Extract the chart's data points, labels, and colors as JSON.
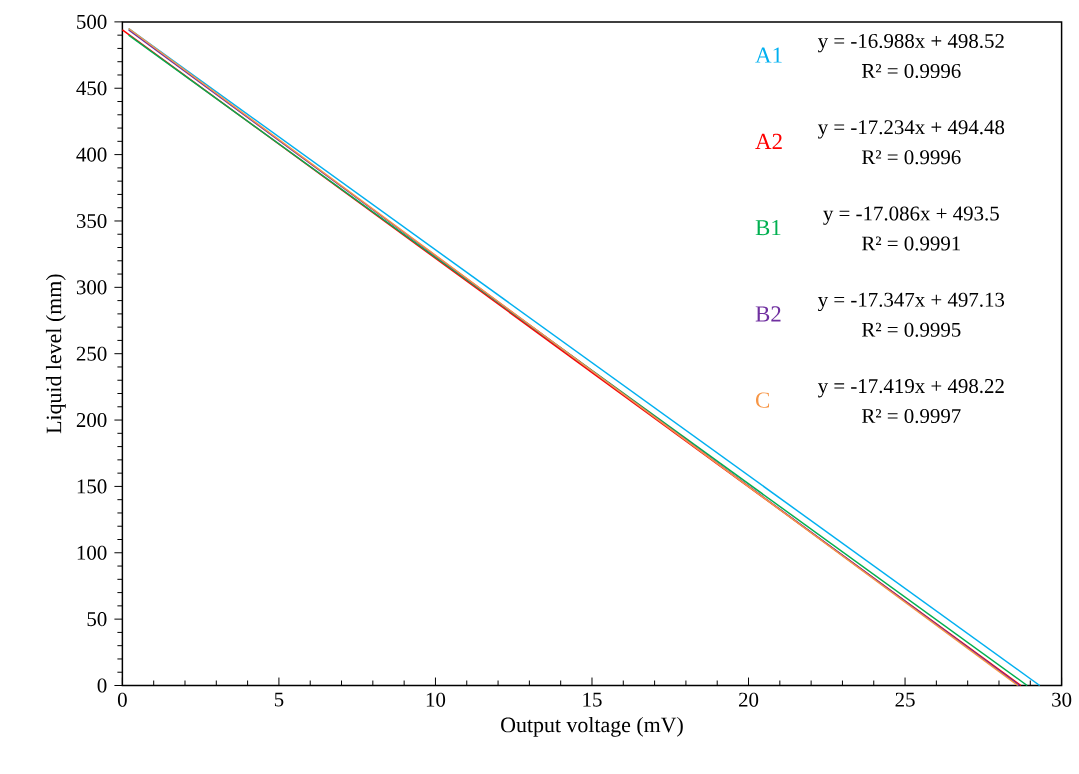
{
  "chart_data": {
    "type": "line",
    "xlabel": "Output voltage (mV)",
    "ylabel": "Liquid level (mm)",
    "xlim": [
      0,
      30
    ],
    "xticks": [
      0,
      5,
      10,
      15,
      20,
      25,
      30
    ],
    "ylim": [
      0,
      500
    ],
    "yticks": [
      0,
      50,
      100,
      150,
      200,
      250,
      300,
      350,
      400,
      450,
      500
    ],
    "grid": false,
    "marker": "none",
    "line_style": "solid",
    "series": [
      {
        "name": "A1",
        "color": "#00b0f0",
        "x": [
          0.2,
          29.3
        ],
        "values": [
          495,
          0
        ]
      },
      {
        "name": "A2",
        "color": "#ff0000",
        "x": [
          0,
          28.7
        ],
        "values": [
          494,
          0
        ]
      },
      {
        "name": "B1",
        "color": "#00b050",
        "x": [
          0.2,
          28.9
        ],
        "values": [
          490,
          0
        ]
      },
      {
        "name": "B2",
        "color": "#7030a0",
        "x": [
          0.2,
          28.65
        ],
        "values": [
          494,
          0
        ]
      },
      {
        "name": "C",
        "color": "#f79646",
        "x": [
          0.2,
          28.6
        ],
        "values": [
          495,
          0
        ]
      }
    ],
    "annotations": [
      "y = -16.988x + 498.52",
      "R² = 0.9996",
      "y = -17.234x + 494.48",
      "R² = 0.9996",
      "y = -17.086x + 493.5",
      "R² = 0.9991",
      "y = -17.347x + 497.13",
      "R² = 0.9995",
      "y = -17.419x + 498.22",
      "R² = 0.9997"
    ]
  }
}
